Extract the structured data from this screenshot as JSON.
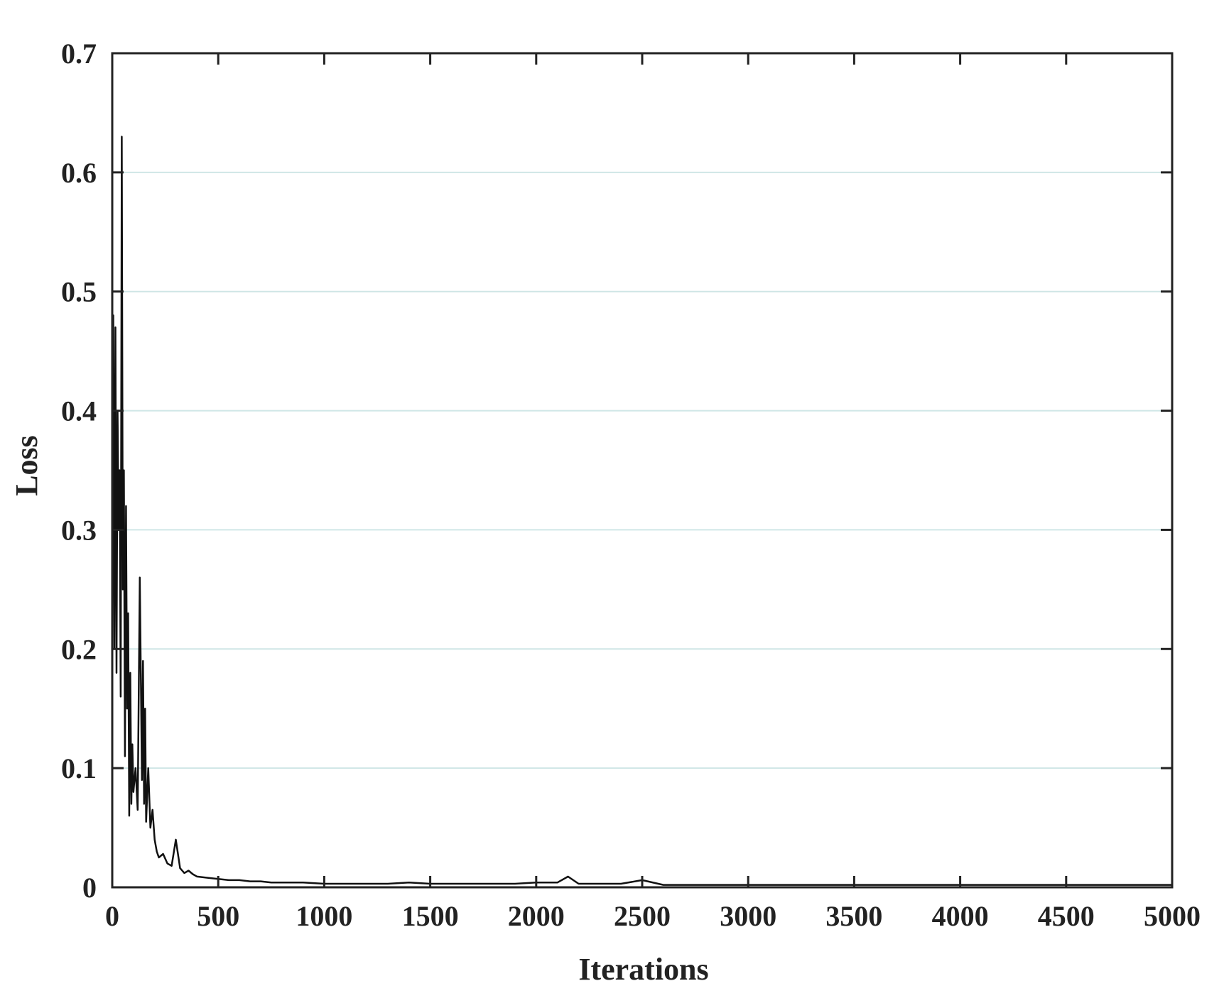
{
  "colors": {
    "line": "#111111",
    "axes": "#222222",
    "grid": "#cfe6e6",
    "background": "#ffffff"
  },
  "chart_data": {
    "type": "line",
    "title": "",
    "xlabel": "Iterations",
    "ylabel": "Loss",
    "xlim": [
      0,
      5000
    ],
    "ylim": [
      0,
      0.7
    ],
    "xticks": [
      0,
      500,
      1000,
      1500,
      2000,
      2500,
      3000,
      3500,
      4000,
      4500,
      5000
    ],
    "xtick_labels": [
      "0",
      "500",
      "1000",
      "1500",
      "2000",
      "2500",
      "3000",
      "3500",
      "4000",
      "4500",
      "5000"
    ],
    "yticks": [
      0,
      0.1,
      0.2,
      0.3,
      0.4,
      0.5,
      0.6,
      0.7
    ],
    "ytick_labels": [
      "0",
      "0.1",
      "0.2",
      "0.3",
      "0.4",
      "0.5",
      "0.6",
      "0.7"
    ],
    "grid": "horizontal",
    "legend": "none",
    "series": [
      {
        "x": [
          0,
          5,
          10,
          15,
          20,
          25,
          30,
          35,
          40,
          45,
          50,
          55,
          60,
          65,
          70,
          75,
          80,
          85,
          90,
          95,
          100,
          110,
          120,
          130,
          140,
          145,
          150,
          155,
          160,
          170,
          180,
          190,
          200,
          210,
          220,
          240,
          260,
          280,
          300,
          320,
          340,
          360,
          380,
          400,
          450,
          500,
          550,
          600,
          650,
          700,
          750,
          800,
          900,
          1000,
          1100,
          1200,
          1300,
          1400,
          1500,
          1600,
          1700,
          1800,
          1900,
          2000,
          2100,
          2150,
          2200,
          2300,
          2400,
          2500,
          2600,
          2700,
          2800,
          3000,
          3200,
          3400,
          3600,
          3800,
          4000,
          4200,
          4400,
          4600,
          4800,
          5000
        ],
        "y": [
          0.3,
          0.48,
          0.2,
          0.47,
          0.18,
          0.4,
          0.3,
          0.35,
          0.16,
          0.63,
          0.25,
          0.35,
          0.11,
          0.32,
          0.15,
          0.23,
          0.06,
          0.18,
          0.07,
          0.12,
          0.08,
          0.1,
          0.065,
          0.26,
          0.09,
          0.19,
          0.07,
          0.15,
          0.055,
          0.1,
          0.05,
          0.065,
          0.04,
          0.03,
          0.025,
          0.028,
          0.02,
          0.018,
          0.04,
          0.016,
          0.012,
          0.014,
          0.011,
          0.009,
          0.008,
          0.007,
          0.006,
          0.006,
          0.005,
          0.005,
          0.004,
          0.004,
          0.004,
          0.003,
          0.003,
          0.003,
          0.003,
          0.004,
          0.003,
          0.003,
          0.003,
          0.003,
          0.003,
          0.004,
          0.004,
          0.009,
          0.003,
          0.003,
          0.003,
          0.006,
          0.002,
          0.002,
          0.002,
          0.002,
          0.002,
          0.002,
          0.002,
          0.002,
          0.002,
          0.002,
          0.002,
          0.002,
          0.002,
          0.002
        ]
      }
    ]
  }
}
